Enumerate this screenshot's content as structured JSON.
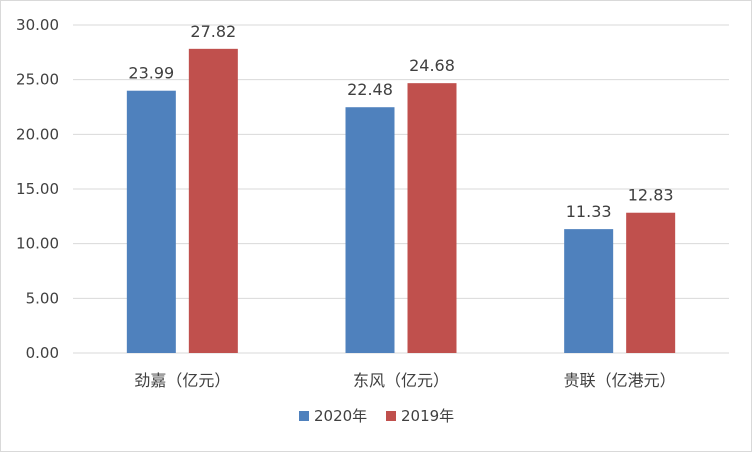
{
  "chart_data": {
    "type": "bar",
    "title": "",
    "xlabel": "",
    "ylabel": "",
    "categories": [
      "劲嘉（亿元）",
      "东风（亿元）",
      "贵联（亿港元）"
    ],
    "series": [
      {
        "name": "2020年",
        "values": [
          23.99,
          22.48,
          11.33
        ],
        "color": "#4F81BD"
      },
      {
        "name": "2019年",
        "values": [
          27.82,
          24.68,
          12.83
        ],
        "color": "#C0504D"
      }
    ],
    "ylim": [
      0,
      30
    ],
    "yticks": [
      "0.00",
      "5.00",
      "10.00",
      "15.00",
      "20.00",
      "25.00",
      "30.00"
    ],
    "data_labels": true,
    "grid": true,
    "legend": "bottom"
  }
}
